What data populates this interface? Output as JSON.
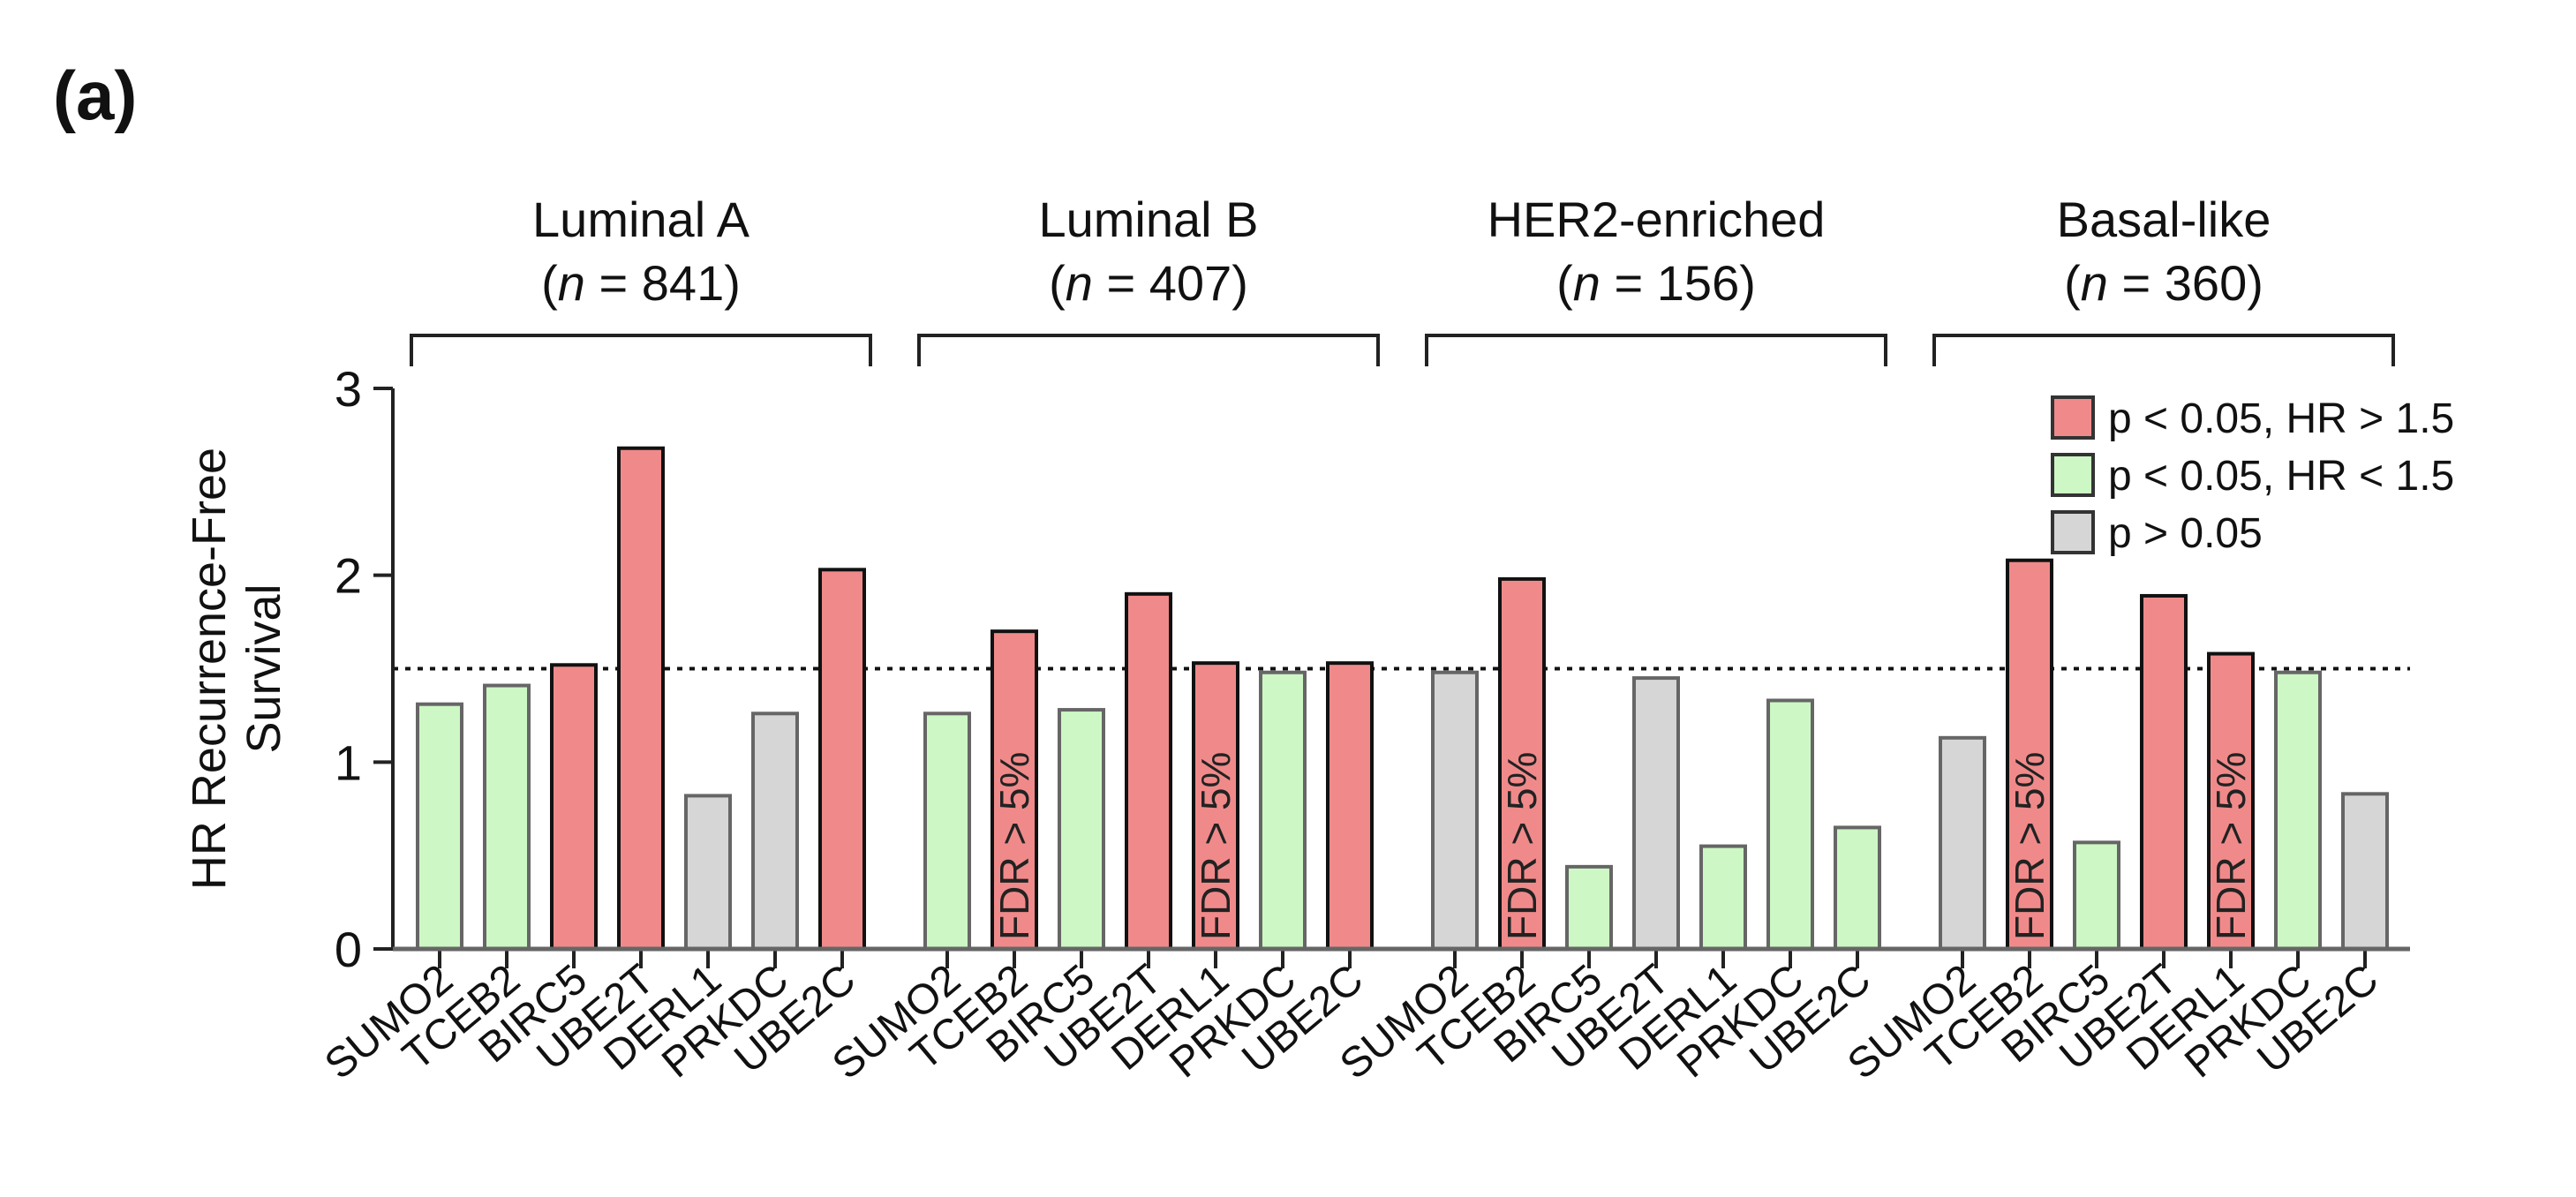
{
  "panel_label": "(a)",
  "colors": {
    "sig_high": "#f08a8a",
    "sig_low": "#cdf7c4",
    "ns": "#d6d6d6",
    "axis": "#222222"
  },
  "chart_data": {
    "type": "bar",
    "ylabel": "HR Recurrence-Free Survival",
    "ylim": [
      0,
      3
    ],
    "yticks": [
      0,
      1,
      2,
      3
    ],
    "reference_line": 1.5,
    "annotation_text": "FDR > 5%",
    "legend": [
      {
        "key": "sig_high",
        "label": "p < 0.05, HR > 1.5"
      },
      {
        "key": "sig_low",
        "label": "p < 0.05, HR < 1.5"
      },
      {
        "key": "ns",
        "label": "p > 0.05"
      }
    ],
    "groups": [
      {
        "name": "Luminal A",
        "n_label": "n",
        "n_value": "841",
        "bars": [
          {
            "gene": "SUMO2",
            "value": 1.31,
            "cls": "sig_low",
            "fdr": false
          },
          {
            "gene": "TCEB2",
            "value": 1.41,
            "cls": "sig_low",
            "fdr": false
          },
          {
            "gene": "BIRC5",
            "value": 1.52,
            "cls": "sig_high",
            "fdr": false
          },
          {
            "gene": "UBE2T",
            "value": 2.68,
            "cls": "sig_high",
            "fdr": false
          },
          {
            "gene": "DERL1",
            "value": 0.82,
            "cls": "ns",
            "fdr": false
          },
          {
            "gene": "PRKDC",
            "value": 1.26,
            "cls": "ns",
            "fdr": false
          },
          {
            "gene": "UBE2C",
            "value": 2.03,
            "cls": "sig_high",
            "fdr": false
          }
        ]
      },
      {
        "name": "Luminal B",
        "n_label": "n",
        "n_value": "407",
        "bars": [
          {
            "gene": "SUMO2",
            "value": 1.26,
            "cls": "sig_low",
            "fdr": false
          },
          {
            "gene": "TCEB2",
            "value": 1.7,
            "cls": "sig_high",
            "fdr": true
          },
          {
            "gene": "BIRC5",
            "value": 1.28,
            "cls": "sig_low",
            "fdr": false
          },
          {
            "gene": "UBE2T",
            "value": 1.9,
            "cls": "sig_high",
            "fdr": false
          },
          {
            "gene": "DERL1",
            "value": 1.53,
            "cls": "sig_high",
            "fdr": true
          },
          {
            "gene": "PRKDC",
            "value": 1.48,
            "cls": "sig_low",
            "fdr": false
          },
          {
            "gene": "UBE2C",
            "value": 1.53,
            "cls": "sig_high",
            "fdr": false
          }
        ]
      },
      {
        "name": "HER2-enriched",
        "n_label": "n",
        "n_value": "156",
        "bars": [
          {
            "gene": "SUMO2",
            "value": 1.48,
            "cls": "ns",
            "fdr": false
          },
          {
            "gene": "TCEB2",
            "value": 1.98,
            "cls": "sig_high",
            "fdr": true
          },
          {
            "gene": "BIRC5",
            "value": 0.44,
            "cls": "sig_low",
            "fdr": false
          },
          {
            "gene": "UBE2T",
            "value": 1.45,
            "cls": "ns",
            "fdr": false
          },
          {
            "gene": "DERL1",
            "value": 0.55,
            "cls": "sig_low",
            "fdr": false
          },
          {
            "gene": "PRKDC",
            "value": 1.33,
            "cls": "sig_low",
            "fdr": false
          },
          {
            "gene": "UBE2C",
            "value": 0.65,
            "cls": "sig_low",
            "fdr": false
          }
        ]
      },
      {
        "name": "Basal-like",
        "n_label": "n",
        "n_value": "360",
        "bars": [
          {
            "gene": "SUMO2",
            "value": 1.13,
            "cls": "ns",
            "fdr": false
          },
          {
            "gene": "TCEB2",
            "value": 2.08,
            "cls": "sig_high",
            "fdr": true
          },
          {
            "gene": "BIRC5",
            "value": 0.57,
            "cls": "sig_low",
            "fdr": false
          },
          {
            "gene": "UBE2T",
            "value": 1.89,
            "cls": "sig_high",
            "fdr": false
          },
          {
            "gene": "DERL1",
            "value": 1.58,
            "cls": "sig_high",
            "fdr": true
          },
          {
            "gene": "PRKDC",
            "value": 1.48,
            "cls": "sig_low",
            "fdr": false
          },
          {
            "gene": "UBE2C",
            "value": 0.83,
            "cls": "ns",
            "fdr": false
          }
        ]
      }
    ]
  }
}
